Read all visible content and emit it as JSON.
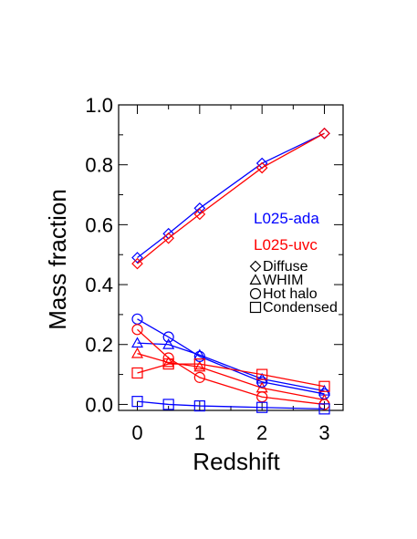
{
  "chart_data": {
    "type": "line",
    "xlabel": "Redshift",
    "ylabel": "Mass fraction",
    "xlim": [
      -0.3,
      3.3
    ],
    "ylim": [
      -0.02,
      1.0
    ],
    "x_ticks": [
      "0",
      "1",
      "2",
      "3"
    ],
    "y_ticks": [
      "0.0",
      "0.2",
      "0.4",
      "0.6",
      "0.8",
      "1.0"
    ],
    "x": [
      0,
      0.5,
      1,
      2,
      3
    ],
    "simulations": [
      {
        "name": "L025-ada",
        "color": "#0000ff"
      },
      {
        "name": "L025-uvc",
        "color": "#ff0000"
      }
    ],
    "phase_legend": [
      {
        "name": "Diffuse",
        "marker": "diamond"
      },
      {
        "name": "WHIM",
        "marker": "triangle"
      },
      {
        "name": "Hot halo",
        "marker": "circle"
      },
      {
        "name": "Condensed",
        "marker": "square"
      }
    ],
    "series": [
      {
        "simulation": "L025-ada",
        "phase": "Diffuse",
        "marker": "diamond",
        "color": "#0000ff",
        "values": [
          0.49,
          0.57,
          0.655,
          0.805,
          0.905
        ]
      },
      {
        "simulation": "L025-uvc",
        "phase": "Diffuse",
        "marker": "diamond",
        "color": "#ff0000",
        "values": [
          0.47,
          0.555,
          0.635,
          0.79,
          0.905
        ]
      },
      {
        "simulation": "L025-ada",
        "phase": "WHIM",
        "marker": "triangle",
        "color": "#0000ff",
        "values": [
          0.205,
          0.2,
          0.165,
          0.085,
          0.045
        ]
      },
      {
        "simulation": "L025-uvc",
        "phase": "WHIM",
        "marker": "triangle",
        "color": "#ff0000",
        "values": [
          0.17,
          0.14,
          0.125,
          0.055,
          0.015
        ]
      },
      {
        "simulation": "L025-ada",
        "phase": "Hot halo",
        "marker": "circle",
        "color": "#0000ff",
        "values": [
          0.285,
          0.225,
          0.16,
          0.075,
          0.035
        ]
      },
      {
        "simulation": "L025-uvc",
        "phase": "Hot halo",
        "marker": "circle",
        "color": "#ff0000",
        "values": [
          0.25,
          0.155,
          0.09,
          0.025,
          0.0
        ]
      },
      {
        "simulation": "L025-ada",
        "phase": "Condensed",
        "marker": "square",
        "color": "#0000ff",
        "values": [
          0.01,
          0.0,
          -0.005,
          -0.01,
          -0.015
        ]
      },
      {
        "simulation": "L025-uvc",
        "phase": "Condensed",
        "marker": "square",
        "color": "#ff0000",
        "values": [
          0.105,
          0.135,
          0.135,
          0.1,
          0.06
        ]
      }
    ]
  }
}
